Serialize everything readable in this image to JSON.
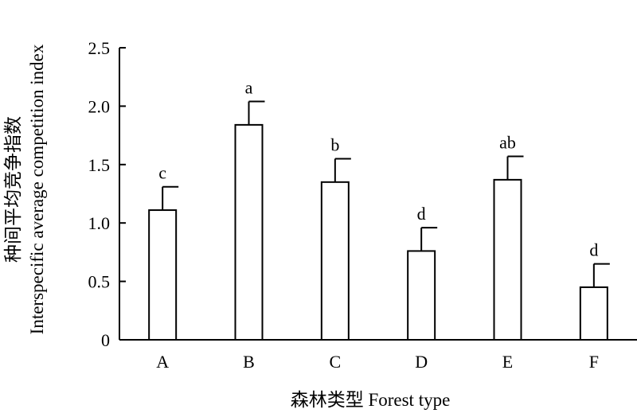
{
  "chart_data": {
    "type": "bar",
    "categories": [
      "A",
      "B",
      "C",
      "D",
      "E",
      "F"
    ],
    "values": [
      1.11,
      1.84,
      1.35,
      0.76,
      1.37,
      0.45
    ],
    "errors": [
      0.2,
      0.2,
      0.2,
      0.2,
      0.2,
      0.2
    ],
    "significance_letters": [
      "c",
      "a",
      "b",
      "d",
      "ab",
      "d"
    ],
    "xlabel": "森林类型 Forest type",
    "ylabel_cn": "种间平均竞争指数",
    "ylabel_en": "Interspecific average competition index",
    "ylim": [
      0,
      2.5
    ],
    "yticks": [
      0,
      0.5,
      1.0,
      1.5,
      2.0,
      2.5
    ],
    "ytick_labels": [
      "0",
      "0.5",
      "1.0",
      "1.5",
      "2.0",
      "2.5"
    ],
    "grid": false,
    "colors": {
      "bar_fill": "#ffffff",
      "stroke": "#000000"
    }
  }
}
